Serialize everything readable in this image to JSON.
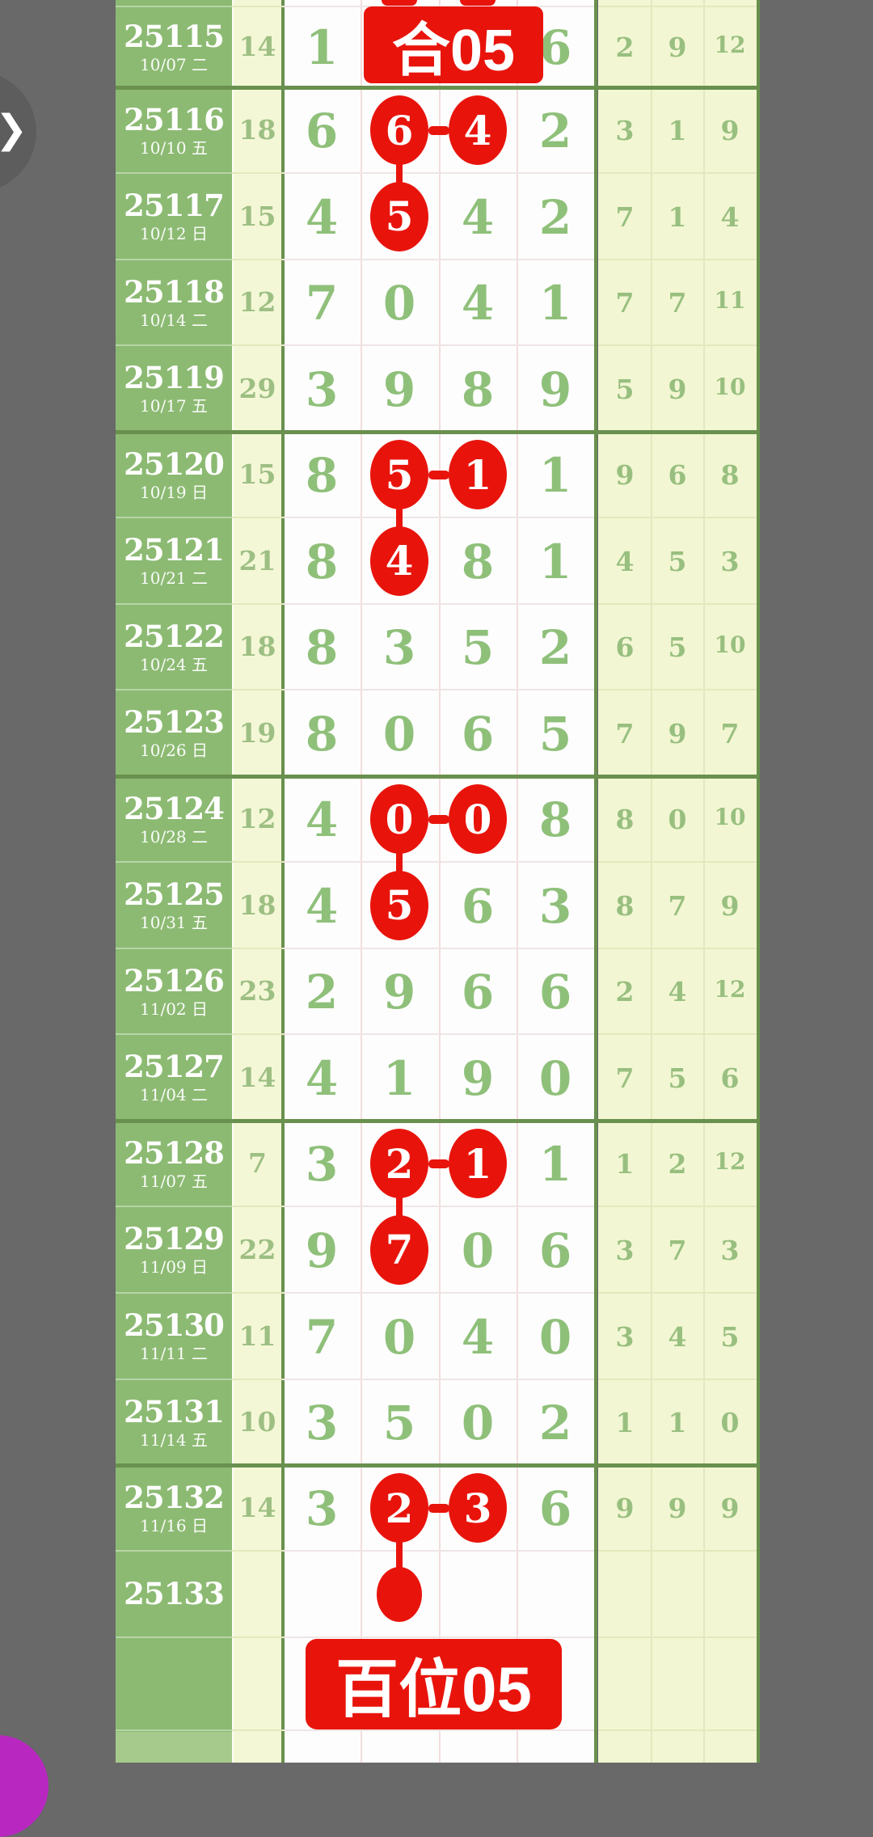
{
  "banners": {
    "top": "合05",
    "bottom": "百位05"
  },
  "nav": {
    "expand_chevron": "❯"
  },
  "colors": {
    "background_gray": "#696969",
    "period_green": "#8cba72",
    "cream": "#f4f7d6",
    "highlight_red": "#e8140c",
    "separator_dark_green": "#69904e",
    "digit_green": "#8fc07a",
    "fab_purple": "#b827c0"
  },
  "chart_data": {
    "type": "table",
    "columns": [
      "period",
      "date",
      "count",
      "d1",
      "d2",
      "d3",
      "d4",
      "r1",
      "r2",
      "r3"
    ],
    "note_banners": [
      "合05",
      "百位05"
    ],
    "rows": [
      {
        "period": "25115",
        "date": "10/07 二",
        "count": "14",
        "main": [
          "1",
          "",
          "",
          "6"
        ],
        "right": [
          "2",
          "9",
          "12"
        ],
        "banner_top": true,
        "thick_after": true
      },
      {
        "period": "25116",
        "date": "10/10 五",
        "count": "18",
        "main": [
          "6",
          "6",
          "4",
          "2"
        ],
        "right": [
          "3",
          "1",
          "9"
        ],
        "circles": [
          1,
          2
        ],
        "dash": true,
        "line_down": true
      },
      {
        "period": "25117",
        "date": "10/12 日",
        "count": "15",
        "main": [
          "4",
          "5",
          "4",
          "2"
        ],
        "right": [
          "7",
          "1",
          "4"
        ],
        "circles": [
          1
        ]
      },
      {
        "period": "25118",
        "date": "10/14 二",
        "count": "12",
        "main": [
          "7",
          "0",
          "4",
          "1"
        ],
        "right": [
          "7",
          "7",
          "11"
        ]
      },
      {
        "period": "25119",
        "date": "10/17 五",
        "count": "29",
        "main": [
          "3",
          "9",
          "8",
          "9"
        ],
        "right": [
          "5",
          "9",
          "10"
        ],
        "thick_after": true
      },
      {
        "period": "25120",
        "date": "10/19 日",
        "count": "15",
        "main": [
          "8",
          "5",
          "1",
          "1"
        ],
        "right": [
          "9",
          "6",
          "8"
        ],
        "circles": [
          1,
          2
        ],
        "dash": true,
        "line_down": true
      },
      {
        "period": "25121",
        "date": "10/21 二",
        "count": "21",
        "main": [
          "8",
          "4",
          "8",
          "1"
        ],
        "right": [
          "4",
          "5",
          "3"
        ],
        "circles": [
          1
        ]
      },
      {
        "period": "25122",
        "date": "10/24 五",
        "count": "18",
        "main": [
          "8",
          "3",
          "5",
          "2"
        ],
        "right": [
          "6",
          "5",
          "10"
        ]
      },
      {
        "period": "25123",
        "date": "10/26 日",
        "count": "19",
        "main": [
          "8",
          "0",
          "6",
          "5"
        ],
        "right": [
          "7",
          "9",
          "7"
        ],
        "thick_after": true
      },
      {
        "period": "25124",
        "date": "10/28 二",
        "count": "12",
        "main": [
          "4",
          "0",
          "0",
          "8"
        ],
        "right": [
          "8",
          "0",
          "10"
        ],
        "circles": [
          1,
          2
        ],
        "dash": true,
        "line_down": true
      },
      {
        "period": "25125",
        "date": "10/31 五",
        "count": "18",
        "main": [
          "4",
          "5",
          "6",
          "3"
        ],
        "right": [
          "8",
          "7",
          "9"
        ],
        "circles": [
          1
        ]
      },
      {
        "period": "25126",
        "date": "11/02 日",
        "count": "23",
        "main": [
          "2",
          "9",
          "6",
          "6"
        ],
        "right": [
          "2",
          "4",
          "12"
        ]
      },
      {
        "period": "25127",
        "date": "11/04 二",
        "count": "14",
        "main": [
          "4",
          "1",
          "9",
          "0"
        ],
        "right": [
          "7",
          "5",
          "6"
        ],
        "thick_after": true
      },
      {
        "period": "25128",
        "date": "11/07 五",
        "count": "7",
        "main": [
          "3",
          "2",
          "1",
          "1"
        ],
        "right": [
          "1",
          "2",
          "12"
        ],
        "circles": [
          1,
          2
        ],
        "dash": true,
        "line_down": true
      },
      {
        "period": "25129",
        "date": "11/09 日",
        "count": "22",
        "main": [
          "9",
          "7",
          "0",
          "6"
        ],
        "right": [
          "3",
          "7",
          "3"
        ],
        "circles": [
          1
        ]
      },
      {
        "period": "25130",
        "date": "11/11 二",
        "count": "11",
        "main": [
          "7",
          "0",
          "4",
          "0"
        ],
        "right": [
          "3",
          "4",
          "5"
        ]
      },
      {
        "period": "25131",
        "date": "11/14 五",
        "count": "10",
        "main": [
          "3",
          "5",
          "0",
          "2"
        ],
        "right": [
          "1",
          "1",
          "0"
        ],
        "thick_after": true
      },
      {
        "period": "25132",
        "date": "11/16 日",
        "count": "14",
        "main": [
          "3",
          "2",
          "3",
          "6"
        ],
        "right": [
          "9",
          "9",
          "9"
        ],
        "circles": [
          1,
          2
        ],
        "dash": true,
        "line_down": true
      },
      {
        "period": "25133",
        "date": "",
        "count": "",
        "main": [
          "",
          "",
          "",
          ""
        ],
        "right": [
          "",
          "",
          ""
        ],
        "dot": true
      }
    ]
  }
}
